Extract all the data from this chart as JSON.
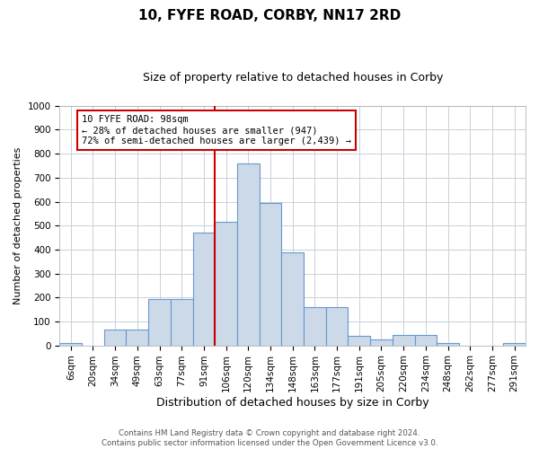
{
  "title": "10, FYFE ROAD, CORBY, NN17 2RD",
  "subtitle": "Size of property relative to detached houses in Corby",
  "xlabel": "Distribution of detached houses by size in Corby",
  "ylabel": "Number of detached properties",
  "categories": [
    "6sqm",
    "20sqm",
    "34sqm",
    "49sqm",
    "63sqm",
    "77sqm",
    "91sqm",
    "106sqm",
    "120sqm",
    "134sqm",
    "148sqm",
    "163sqm",
    "177sqm",
    "191sqm",
    "205sqm",
    "220sqm",
    "234sqm",
    "248sqm",
    "262sqm",
    "277sqm",
    "291sqm"
  ],
  "values": [
    10,
    0,
    65,
    65,
    195,
    195,
    470,
    515,
    760,
    595,
    390,
    160,
    160,
    40,
    25,
    45,
    45,
    10,
    0,
    0,
    10
  ],
  "bar_color": "#ccd9e8",
  "bar_edgecolor": "#6699cc",
  "red_line_x": 7,
  "annotation_text": "10 FYFE ROAD: 98sqm\n← 28% of detached houses are smaller (947)\n72% of semi-detached houses are larger (2,439) →",
  "ylim": [
    0,
    1000
  ],
  "yticks": [
    0,
    100,
    200,
    300,
    400,
    500,
    600,
    700,
    800,
    900,
    1000
  ],
  "footer_line1": "Contains HM Land Registry data © Crown copyright and database right 2024.",
  "footer_line2": "Contains public sector information licensed under the Open Government Licence v3.0.",
  "background_color": "#ffffff",
  "grid_color": "#c8d0d8",
  "annotation_box_color": "#ffffff",
  "annotation_box_edge": "#cc0000",
  "red_line_color": "#cc0000",
  "title_fontsize": 11,
  "subtitle_fontsize": 9,
  "ylabel_fontsize": 8,
  "xlabel_fontsize": 9,
  "tick_fontsize": 7.5
}
